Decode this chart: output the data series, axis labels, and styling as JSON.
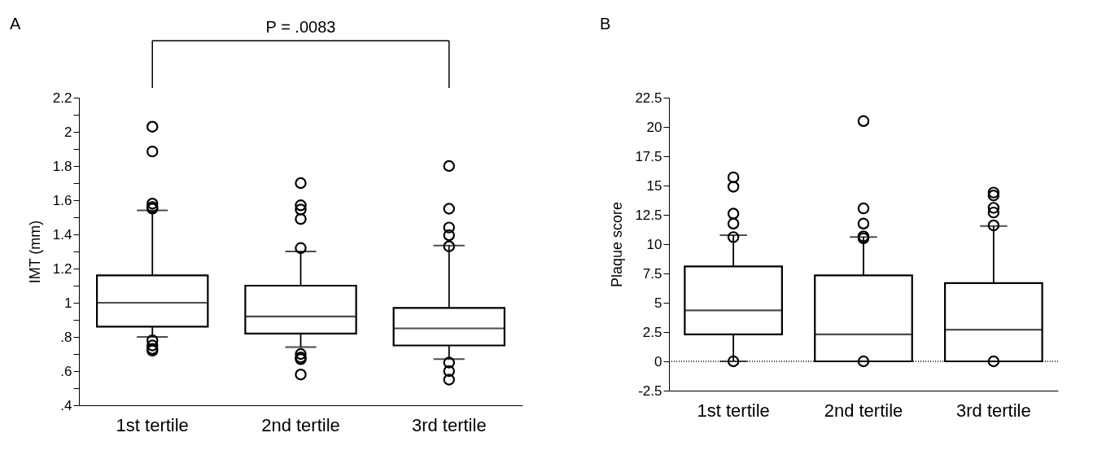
{
  "chart_data": [
    {
      "type": "box",
      "ylabel": "IMT (mm)",
      "categories": [
        "1st tertile",
        "2nd tertile",
        "3rd tertile"
      ],
      "boxes": [
        {
          "low": 0.8,
          "q1": 0.86,
          "median": 1.0,
          "q3": 1.16,
          "high": 1.54,
          "outliers": [
            2.03,
            1.885,
            1.58,
            1.56,
            1.55,
            0.78,
            0.75,
            0.73,
            0.72
          ]
        },
        {
          "low": 0.74,
          "q1": 0.82,
          "median": 0.92,
          "q3": 1.1,
          "high": 1.3,
          "outliers": [
            1.7,
            1.57,
            1.545,
            1.49,
            1.32,
            0.7,
            0.68,
            0.67,
            0.58
          ]
        },
        {
          "low": 0.67,
          "q1": 0.75,
          "median": 0.85,
          "q3": 0.97,
          "high": 1.335,
          "outliers": [
            1.8,
            1.55,
            1.44,
            1.395,
            1.33,
            0.65,
            0.6,
            0.55
          ]
        }
      ],
      "color": "#000000",
      "ylim": [
        0.4,
        2.2
      ],
      "yticks": [
        {
          "value": 0.4,
          "label": ".4"
        },
        {
          "value": 0.5,
          "label": null
        },
        {
          "value": 0.6,
          "label": ".6"
        },
        {
          "value": 0.7,
          "label": null
        },
        {
          "value": 0.8,
          "label": ".8"
        },
        {
          "value": 0.9,
          "label": null
        },
        1,
        {
          "value": 1.1,
          "label": null
        },
        1.2,
        {
          "value": 1.3,
          "label": null
        },
        1.4,
        {
          "value": 1.5,
          "label": null
        },
        1.6,
        {
          "value": 1.7,
          "label": null
        },
        1.8,
        {
          "value": 1.9,
          "label": null
        },
        2,
        {
          "value": 2.1,
          "label": null
        },
        2.2
      ],
      "grid": false,
      "annotations": [
        "A",
        "P = .0083"
      ]
    },
    {
      "type": "box",
      "ylabel": "Plaque score",
      "categories": [
        "1st tertile",
        "2nd tertile",
        "3rd tertile"
      ],
      "boxes": [
        {
          "low": 0,
          "q1": 2.3,
          "median": 4.35,
          "q3": 8.1,
          "high": 10.76,
          "outliers": [
            15.7,
            14.9,
            12.6,
            11.75,
            10.6,
            0
          ]
        },
        {
          "low": 0,
          "q1": 0,
          "median": 2.3,
          "q3": 7.34,
          "high": 10.6,
          "outliers": [
            20.5,
            13.05,
            11.75,
            10.67,
            10.5,
            0
          ]
        },
        {
          "low": 0,
          "q1": 0,
          "median": 2.7,
          "q3": 6.67,
          "high": 11.54,
          "outliers": [
            14.4,
            14.15,
            13.1,
            12.7,
            11.6,
            0
          ]
        }
      ],
      "color": "#000000",
      "ylim": [
        -2.5,
        22.5
      ],
      "yticks": [
        -2.5,
        0,
        2.5,
        5,
        7.5,
        10,
        12.5,
        15,
        17.5,
        20,
        22.5
      ],
      "grid": false,
      "ref_lines": [
        {
          "axis": "y",
          "value": 0,
          "label": null,
          "line_style": "dotted",
          "color": "#000000"
        }
      ],
      "annotations": [
        "B"
      ]
    }
  ]
}
